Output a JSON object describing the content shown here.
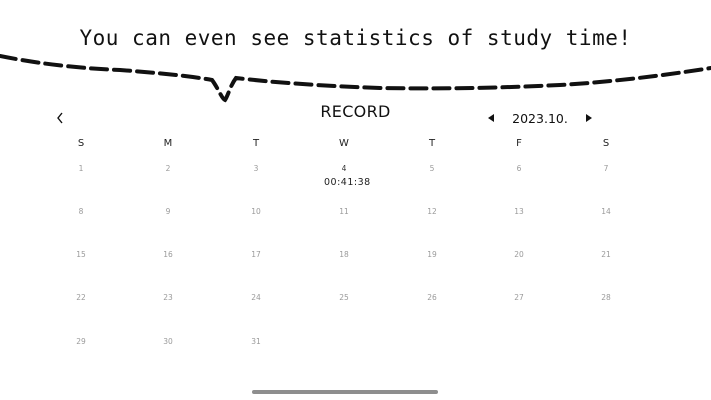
{
  "caption": "You can even see statistics of study time!",
  "header": {
    "title": "RECORD",
    "back_icon": "chevron-left-icon",
    "month_label": "2023.10.",
    "prev_icon": "triangle-left-icon",
    "next_icon": "triangle-right-icon"
  },
  "weekdays": [
    "S",
    "M",
    "T",
    "W",
    "T",
    "F",
    "S"
  ],
  "weeks": [
    [
      {
        "day": "1"
      },
      {
        "day": "2"
      },
      {
        "day": "3"
      },
      {
        "day": "4",
        "record": "00:41:38"
      },
      {
        "day": "5"
      },
      {
        "day": "6"
      },
      {
        "day": "7"
      }
    ],
    [
      {
        "day": "8"
      },
      {
        "day": "9"
      },
      {
        "day": "10"
      },
      {
        "day": "11"
      },
      {
        "day": "12"
      },
      {
        "day": "13"
      },
      {
        "day": "14"
      }
    ],
    [
      {
        "day": "15"
      },
      {
        "day": "16"
      },
      {
        "day": "17"
      },
      {
        "day": "18"
      },
      {
        "day": "19"
      },
      {
        "day": "20"
      },
      {
        "day": "21"
      }
    ],
    [
      {
        "day": "22"
      },
      {
        "day": "23"
      },
      {
        "day": "24"
      },
      {
        "day": "25"
      },
      {
        "day": "26"
      },
      {
        "day": "27"
      },
      {
        "day": "28"
      }
    ],
    [
      {
        "day": "29"
      },
      {
        "day": "30"
      },
      {
        "day": "31"
      }
    ]
  ],
  "colors": {
    "text": "#111111",
    "day_muted": "#9a9a9a",
    "indicator": "#8e8e8e"
  }
}
